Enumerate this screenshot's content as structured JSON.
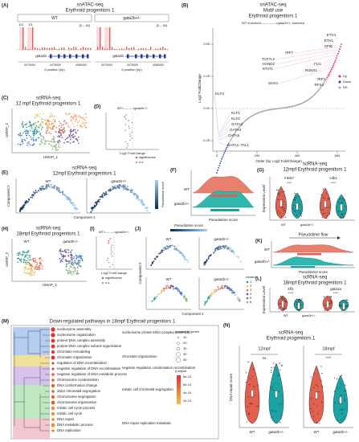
{
  "A": {
    "letter": "(A)",
    "title": "snATAC-seq",
    "subtitle": "Erythroid progenitors 1",
    "groups": [
      "WT",
      "gata2b+/-"
    ],
    "range": "[0 – 40]",
    "peaks": [
      "E2",
      "E1"
    ],
    "gene": "gata2b",
    "xticks": [
      "4070000",
      "4075000",
      "4080000"
    ],
    "xlabel": "6 position (bp)"
  },
  "B": {
    "letter": "(B)",
    "title": "snATAC-seq",
    "subtitle": "Motif use",
    "subtitle2": "Erythroid progenitors 1",
    "direction": "WT enriched<------ ------>gata2b+/- enriched",
    "ylabel": "Log2 FoldChange",
    "xlabel": "Order (by Log2 FoldChange)",
    "yticks": [
      "0.50",
      "0.25",
      "0.00",
      "-0.25"
    ],
    "xticks": [
      "0",
      "200",
      "400",
      "600"
    ],
    "legend": [
      "Up",
      "Down",
      "NS"
    ],
    "up_motifs": [
      "ETV4",
      "ETV1",
      "SPIB",
      "IRF7",
      "TCF7L2",
      "HAND2",
      "STAT1",
      "FLI1",
      "RUNX1",
      "IRF3",
      "RFX4",
      "SOX4"
    ],
    "down_motifs": [
      "KLF3",
      "KLF1",
      "KLF2",
      "GATA2",
      "GATA4",
      "GATA5",
      "GATA1::TAL1"
    ]
  },
  "C": {
    "letter": "(C)",
    "title": "scRNA-seq",
    "subtitle": "12 mpf Erythroid progenitors 1",
    "xlabel": "UMAP_1",
    "ylabel": "UMAP_2"
  },
  "D": {
    "letter": "(D)",
    "direction": "WT<---- --->gata2b+/-",
    "xlabel": "Log2 FoldChange",
    "legend": [
      "significance",
      "n.s."
    ]
  },
  "E": {
    "letter": "(E)",
    "title": "scRNA-seq",
    "subtitle": "12mpf Erythroid progenitors 1",
    "groups": [
      "WT",
      "gata2b+/-"
    ],
    "xlabel": "Component 1",
    "ylabel": "Component 2",
    "legend": "Pseudotime score"
  },
  "F": {
    "letter": "(F)",
    "groups": [
      "WT",
      "gata2b+/-"
    ],
    "xlabel": "Pseudotime score"
  },
  "G": {
    "letter": "(G)",
    "title": "scRNA-seq",
    "subtitle": "12mpf Erythroid progenitors 1",
    "genes": [
      "mki67",
      "cdk1"
    ],
    "ylabel": "Expression Level",
    "groups": [
      "WT",
      "gata2b+/-"
    ],
    "stars": "****"
  },
  "H": {
    "letter": "(H)",
    "title": "scRNA-seq",
    "subtitle": "18mpf Erythroid progenitors 1",
    "groups": [
      "WT",
      "gata2b+/-"
    ],
    "xlabel": "UMAP_1",
    "ylabel": "UMAP_2"
  },
  "I": {
    "letter": "(I)",
    "direction": "WT<---- --->gata2b+/-",
    "xlabel": "Log2 FoldChange",
    "legend": [
      "significance",
      "n.s."
    ]
  },
  "J": {
    "letter": "(J)",
    "legend": "Pseudotime score",
    "groups": [
      "WT",
      "gata2b+/-"
    ],
    "xlabel": "Component 1",
    "ylabel": "Component 2",
    "clusters_title": "clusters",
    "clusters": [
      "1",
      "2",
      "3",
      "4",
      "5",
      "6"
    ]
  },
  "K": {
    "letter": "(K)",
    "title": "Pseudotime flow",
    "groups": [
      "WT",
      "gata2b+/-"
    ],
    "xlabel": "Pseudotime score"
  },
  "L": {
    "letter": "(L)",
    "title": "scRNA-seq",
    "subtitle": "18mpf Erythroid progenitors 1",
    "genes": [
      "klf1",
      "gata1a"
    ],
    "ylabel": "Expression Level",
    "groups": [
      "WT",
      "gata2b+/-"
    ],
    "stars": "****"
  },
  "M": {
    "letter": "(M)",
    "title": "Down-regulated pathways in 18mpf Erythroid progenitors 1",
    "terms": [
      "nucleosome assembly",
      "nucleosome organization",
      "protein-DNA complex assembly",
      "protein-DNA complex subunit organization",
      "chromatin remodeling",
      "chromatin organization",
      "regulation of DNA recombination",
      "negative regulation of DNA recombination",
      "negative regulation of DNA metabolic process",
      "chromosome condensation",
      "DNA conformation change",
      "sister chromatid segregation",
      "chromosome segregation",
      "chromosome organization",
      "mitotic cell cycle process",
      "mitotic cell cycle",
      "DNA repair",
      "DNA metabolic process",
      "DNA replication"
    ],
    "clusters": [
      "nucleosome protein-DNA complex assembly",
      "chromatin organization",
      "negative regulation condensation recombination",
      "mitotic cell chromatid segregation",
      "DNA repair replication metabolic"
    ],
    "size_title": "number of genes",
    "sizes": [
      "10",
      "20",
      "30",
      "40",
      "50"
    ],
    "color_title": "p.adjust",
    "colors": [
      "8e-10",
      "6e-10",
      "4e-10",
      "2e-10"
    ]
  },
  "N": {
    "letter": "(N)",
    "title": "scRNA-seq",
    "subtitle": "Erythroid progenitors 1",
    "timepoints": [
      "12mpf",
      "18mpf"
    ],
    "ylabel": "DNA repair score",
    "sig": "ns",
    "stars": "****",
    "groups": [
      "WT",
      "gata2b+/-"
    ]
  }
}
